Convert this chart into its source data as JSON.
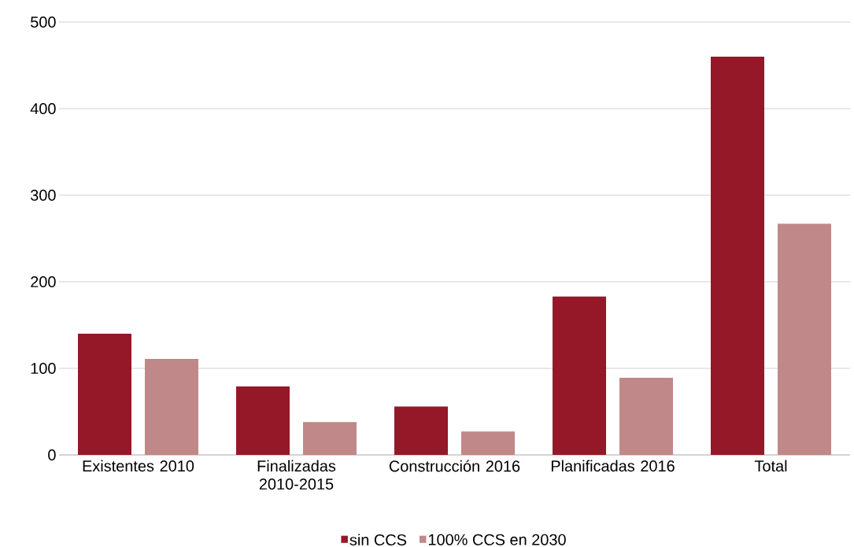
{
  "chart_data": {
    "type": "bar",
    "categories": [
      "Existentes  2010",
      "Finalizadas  2010-2015",
      "Construcción 2016",
      "Planificadas 2016",
      "Total"
    ],
    "series": [
      {
        "name": "sin CCS",
        "color": "#951829",
        "values": [
          140,
          79,
          56,
          183,
          460
        ]
      },
      {
        "name": "100% CCS en 2030",
        "color": "#c08888",
        "values": [
          111,
          38,
          27,
          89,
          267
        ]
      }
    ],
    "ylim": [
      0,
      500
    ],
    "yticks": [
      0,
      100,
      200,
      300,
      400,
      500
    ],
    "grid": "y",
    "legend": "bottom"
  }
}
